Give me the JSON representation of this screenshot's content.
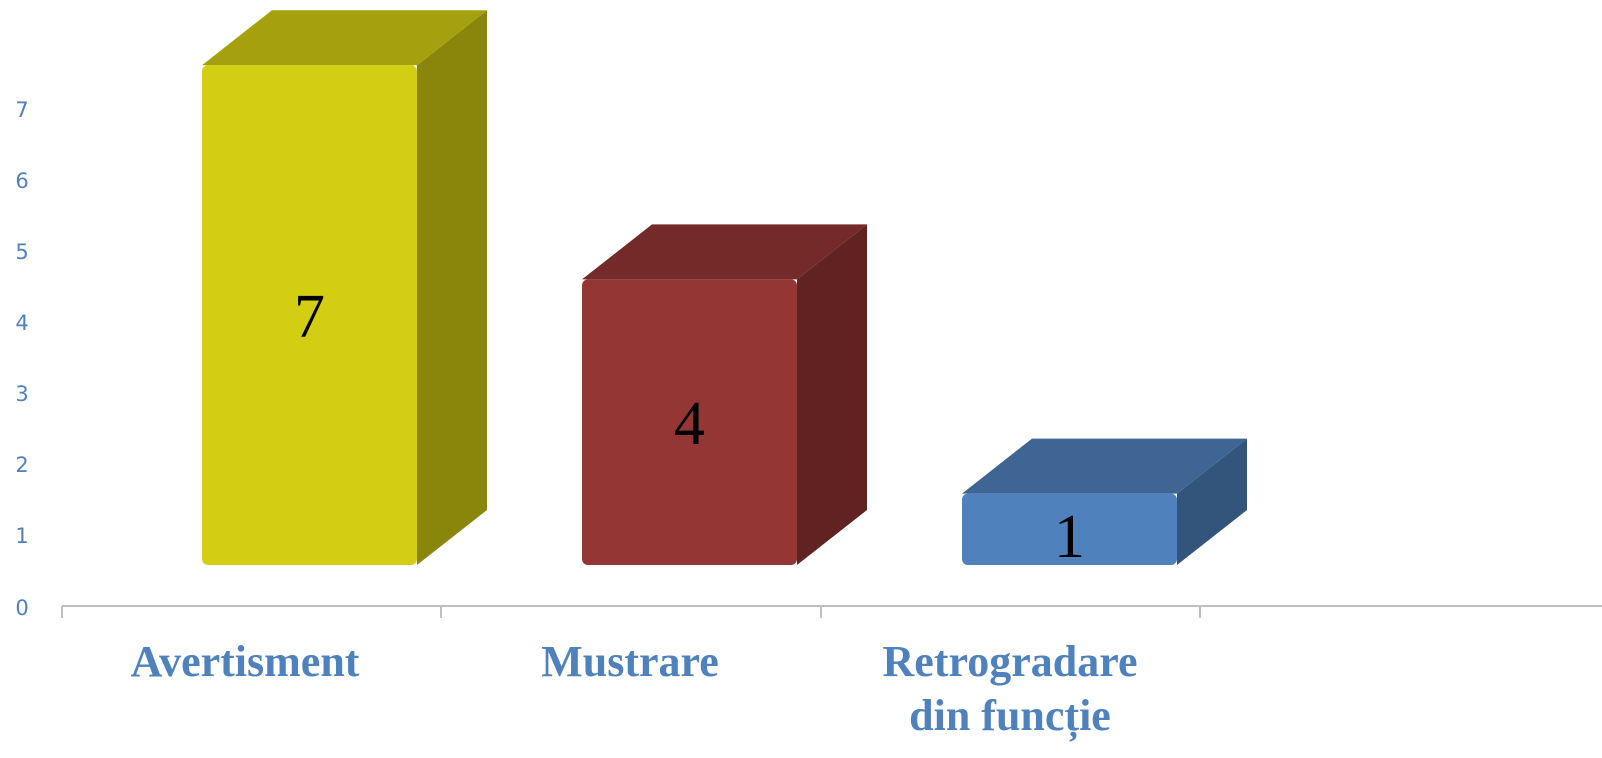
{
  "chart_data": {
    "type": "bar",
    "style": "3d-column",
    "categories": [
      "Avertisment",
      "Mustrare",
      "Retrogradare din funcție"
    ],
    "category_label_lines": [
      [
        "Avertisment"
      ],
      [
        "Mustrare"
      ],
      [
        "Retrogradare",
        "din funcție"
      ]
    ],
    "values": [
      7,
      4,
      1
    ],
    "data_labels": [
      "7",
      "4",
      "1"
    ],
    "y_ticks": [
      "0",
      "1",
      "2",
      "3",
      "4",
      "5",
      "6",
      "7"
    ],
    "ylim": [
      0,
      7
    ],
    "colors": [
      "#D4CE12",
      "#943634",
      "#4F81BD"
    ],
    "title": "",
    "xlabel": "",
    "ylabel": "",
    "grid": false,
    "legend": "none"
  }
}
